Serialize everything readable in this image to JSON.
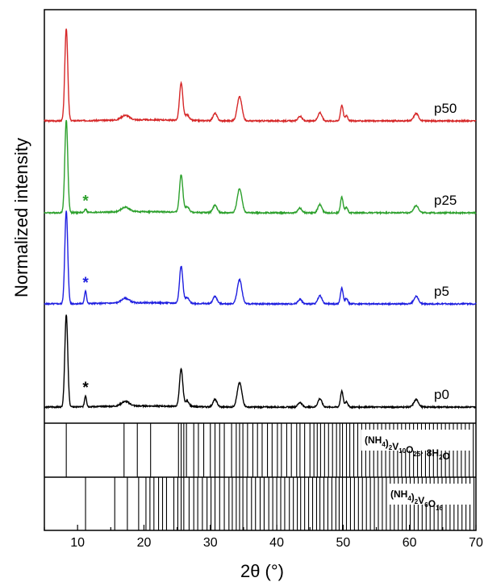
{
  "chart_data": {
    "type": "line",
    "xlabel": "2θ (°)",
    "ylabel": "Normalized intensity",
    "xlim": [
      5,
      70
    ],
    "xticks": [
      10,
      20,
      30,
      40,
      50,
      60,
      70
    ],
    "grid": false,
    "peaks": [
      {
        "x": 8.3,
        "h": 1.0,
        "w": 0.22
      },
      {
        "x": 17.2,
        "h": 0.05,
        "w": 0.6
      },
      {
        "x": 25.6,
        "h": 0.4,
        "w": 0.25
      },
      {
        "x": 26.5,
        "h": 0.06,
        "w": 0.3
      },
      {
        "x": 30.7,
        "h": 0.08,
        "w": 0.3
      },
      {
        "x": 34.4,
        "h": 0.26,
        "w": 0.35
      },
      {
        "x": 43.5,
        "h": 0.05,
        "w": 0.3
      },
      {
        "x": 46.5,
        "h": 0.09,
        "w": 0.3
      },
      {
        "x": 49.8,
        "h": 0.17,
        "w": 0.2
      },
      {
        "x": 50.5,
        "h": 0.06,
        "w": 0.2
      },
      {
        "x": 61.0,
        "h": 0.08,
        "w": 0.35
      }
    ],
    "series": [
      {
        "name": "p50",
        "color": "#d62728",
        "offset": 3,
        "impurity": 0
      },
      {
        "name": "p25",
        "color": "#2ca02c",
        "offset": 2,
        "impurity": 0.04,
        "marker": "*"
      },
      {
        "name": "p5",
        "color": "#1f1fe0",
        "offset": 1,
        "impurity": 0.14,
        "marker": "*"
      },
      {
        "name": "p0",
        "color": "#000000",
        "offset": 0,
        "impurity": 0.12,
        "marker": "*"
      }
    ],
    "reference_patterns": [
      {
        "label_parts": [
          [
            "(NH",
            ""
          ],
          [
            "4",
            "sub"
          ],
          [
            ")",
            ""
          ],
          [
            "2",
            "sub"
          ],
          [
            "V",
            ""
          ],
          [
            "10",
            "sub"
          ],
          [
            "O",
            ""
          ],
          [
            "25",
            "sub"
          ],
          [
            "· 8H",
            ""
          ],
          [
            "2",
            "sub"
          ],
          [
            "O",
            ""
          ]
        ],
        "lines": [
          8.3,
          17.0,
          19.0,
          21.0,
          25.2,
          25.6,
          26.0,
          26.4,
          27.5,
          28.2,
          29.0,
          30.0,
          30.7,
          31.4,
          32.1,
          33.2,
          33.9,
          34.4,
          34.9,
          35.6,
          36.4,
          37.1,
          37.8,
          38.6,
          39.3,
          40.1,
          40.7,
          41.5,
          42.2,
          43.0,
          43.5,
          44.2,
          45.0,
          45.6,
          46.1,
          46.6,
          47.2,
          47.8,
          48.4,
          49.0,
          49.5,
          49.9,
          50.5,
          51.0,
          51.6,
          52.2,
          52.8,
          53.4,
          54.0,
          54.6,
          55.2,
          55.8,
          56.4,
          57.0,
          57.6,
          58.2,
          58.8,
          59.4,
          60.0,
          60.6,
          61.2,
          61.8,
          62.4,
          63.0,
          63.6,
          64.2,
          64.8,
          65.4,
          66.0,
          66.6,
          67.2,
          67.8,
          68.4,
          69.0,
          69.6
        ]
      },
      {
        "label_parts": [
          [
            "(NH",
            ""
          ],
          [
            "4",
            "sub"
          ],
          [
            ")",
            ""
          ],
          [
            "2",
            "sub"
          ],
          [
            "V",
            ""
          ],
          [
            "6",
            "sub"
          ],
          [
            "O",
            ""
          ],
          [
            "16",
            "sub"
          ]
        ],
        "lines": [
          11.2,
          15.6,
          17.5,
          19.2,
          20.3,
          20.9,
          21.5,
          22.2,
          22.8,
          23.4,
          24.5,
          25.1,
          25.6,
          26.0,
          26.8,
          27.5,
          28.1,
          28.8,
          29.5,
          30.1,
          30.7,
          31.4,
          32.1,
          32.8,
          33.3,
          33.9,
          34.4,
          34.9,
          35.5,
          36.2,
          36.8,
          37.5,
          38.1,
          38.8,
          39.4,
          40.0,
          40.6,
          41.2,
          41.9,
          42.5,
          43.1,
          43.6,
          44.2,
          44.8,
          45.4,
          46.0,
          46.5,
          47.1,
          47.7,
          48.3,
          48.9,
          49.4,
          49.9,
          50.5,
          51.1,
          51.7,
          52.3,
          52.9,
          53.5,
          54.1,
          54.7,
          55.3,
          55.9,
          56.5,
          57.1,
          57.7,
          58.3,
          58.9,
          59.5,
          60.1,
          60.7,
          61.3,
          61.9,
          62.5,
          63.1,
          63.7,
          64.3,
          64.9,
          65.5,
          66.1,
          66.7,
          67.3,
          67.9,
          68.5,
          69.1,
          69.7
        ]
      }
    ]
  }
}
